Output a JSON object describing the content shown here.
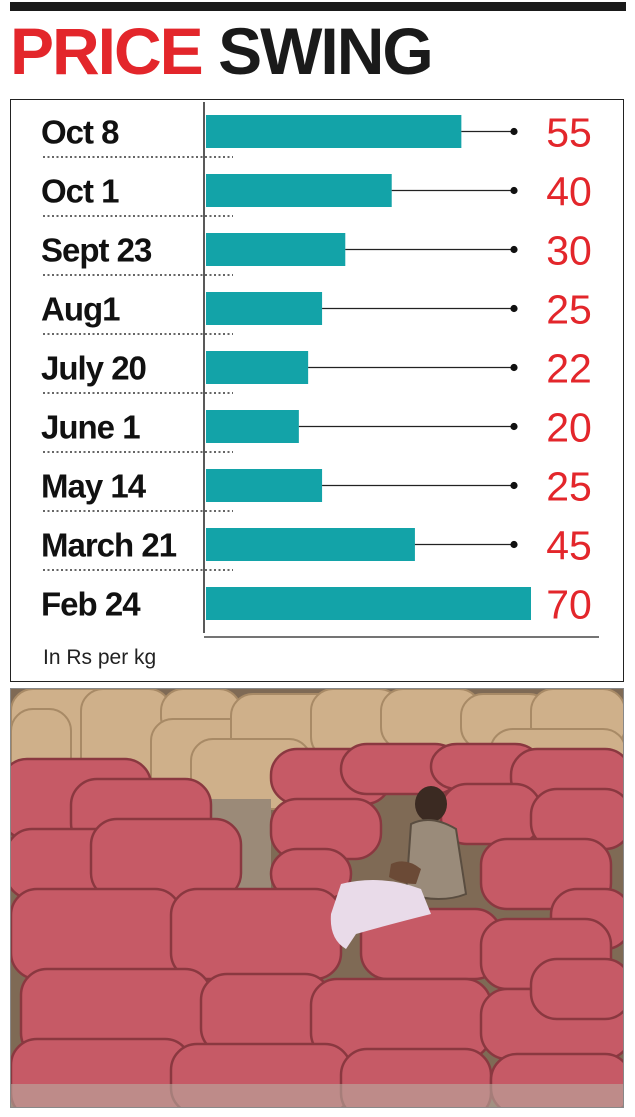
{
  "headline": {
    "word1": "PRICE",
    "word2": "SWING"
  },
  "chart_data": {
    "type": "bar",
    "orientation": "horizontal",
    "categories": [
      "Oct 8",
      "Oct 1",
      "Sept 23",
      "Aug1",
      "July 20",
      "June 1",
      "May 14",
      "March 21",
      "Feb 24"
    ],
    "values": [
      55,
      40,
      30,
      25,
      22,
      20,
      25,
      45,
      70
    ],
    "value_labels": [
      "55",
      "40",
      "30",
      "25",
      "22",
      "20",
      "25",
      "45",
      "70"
    ],
    "unit_note": "In Rs per kg",
    "bar_color": "#13a3a8",
    "value_color": "#e3262b",
    "xlim": [
      0,
      70
    ]
  },
  "photo": {
    "subject": "onion-sacks-with-vendor"
  }
}
